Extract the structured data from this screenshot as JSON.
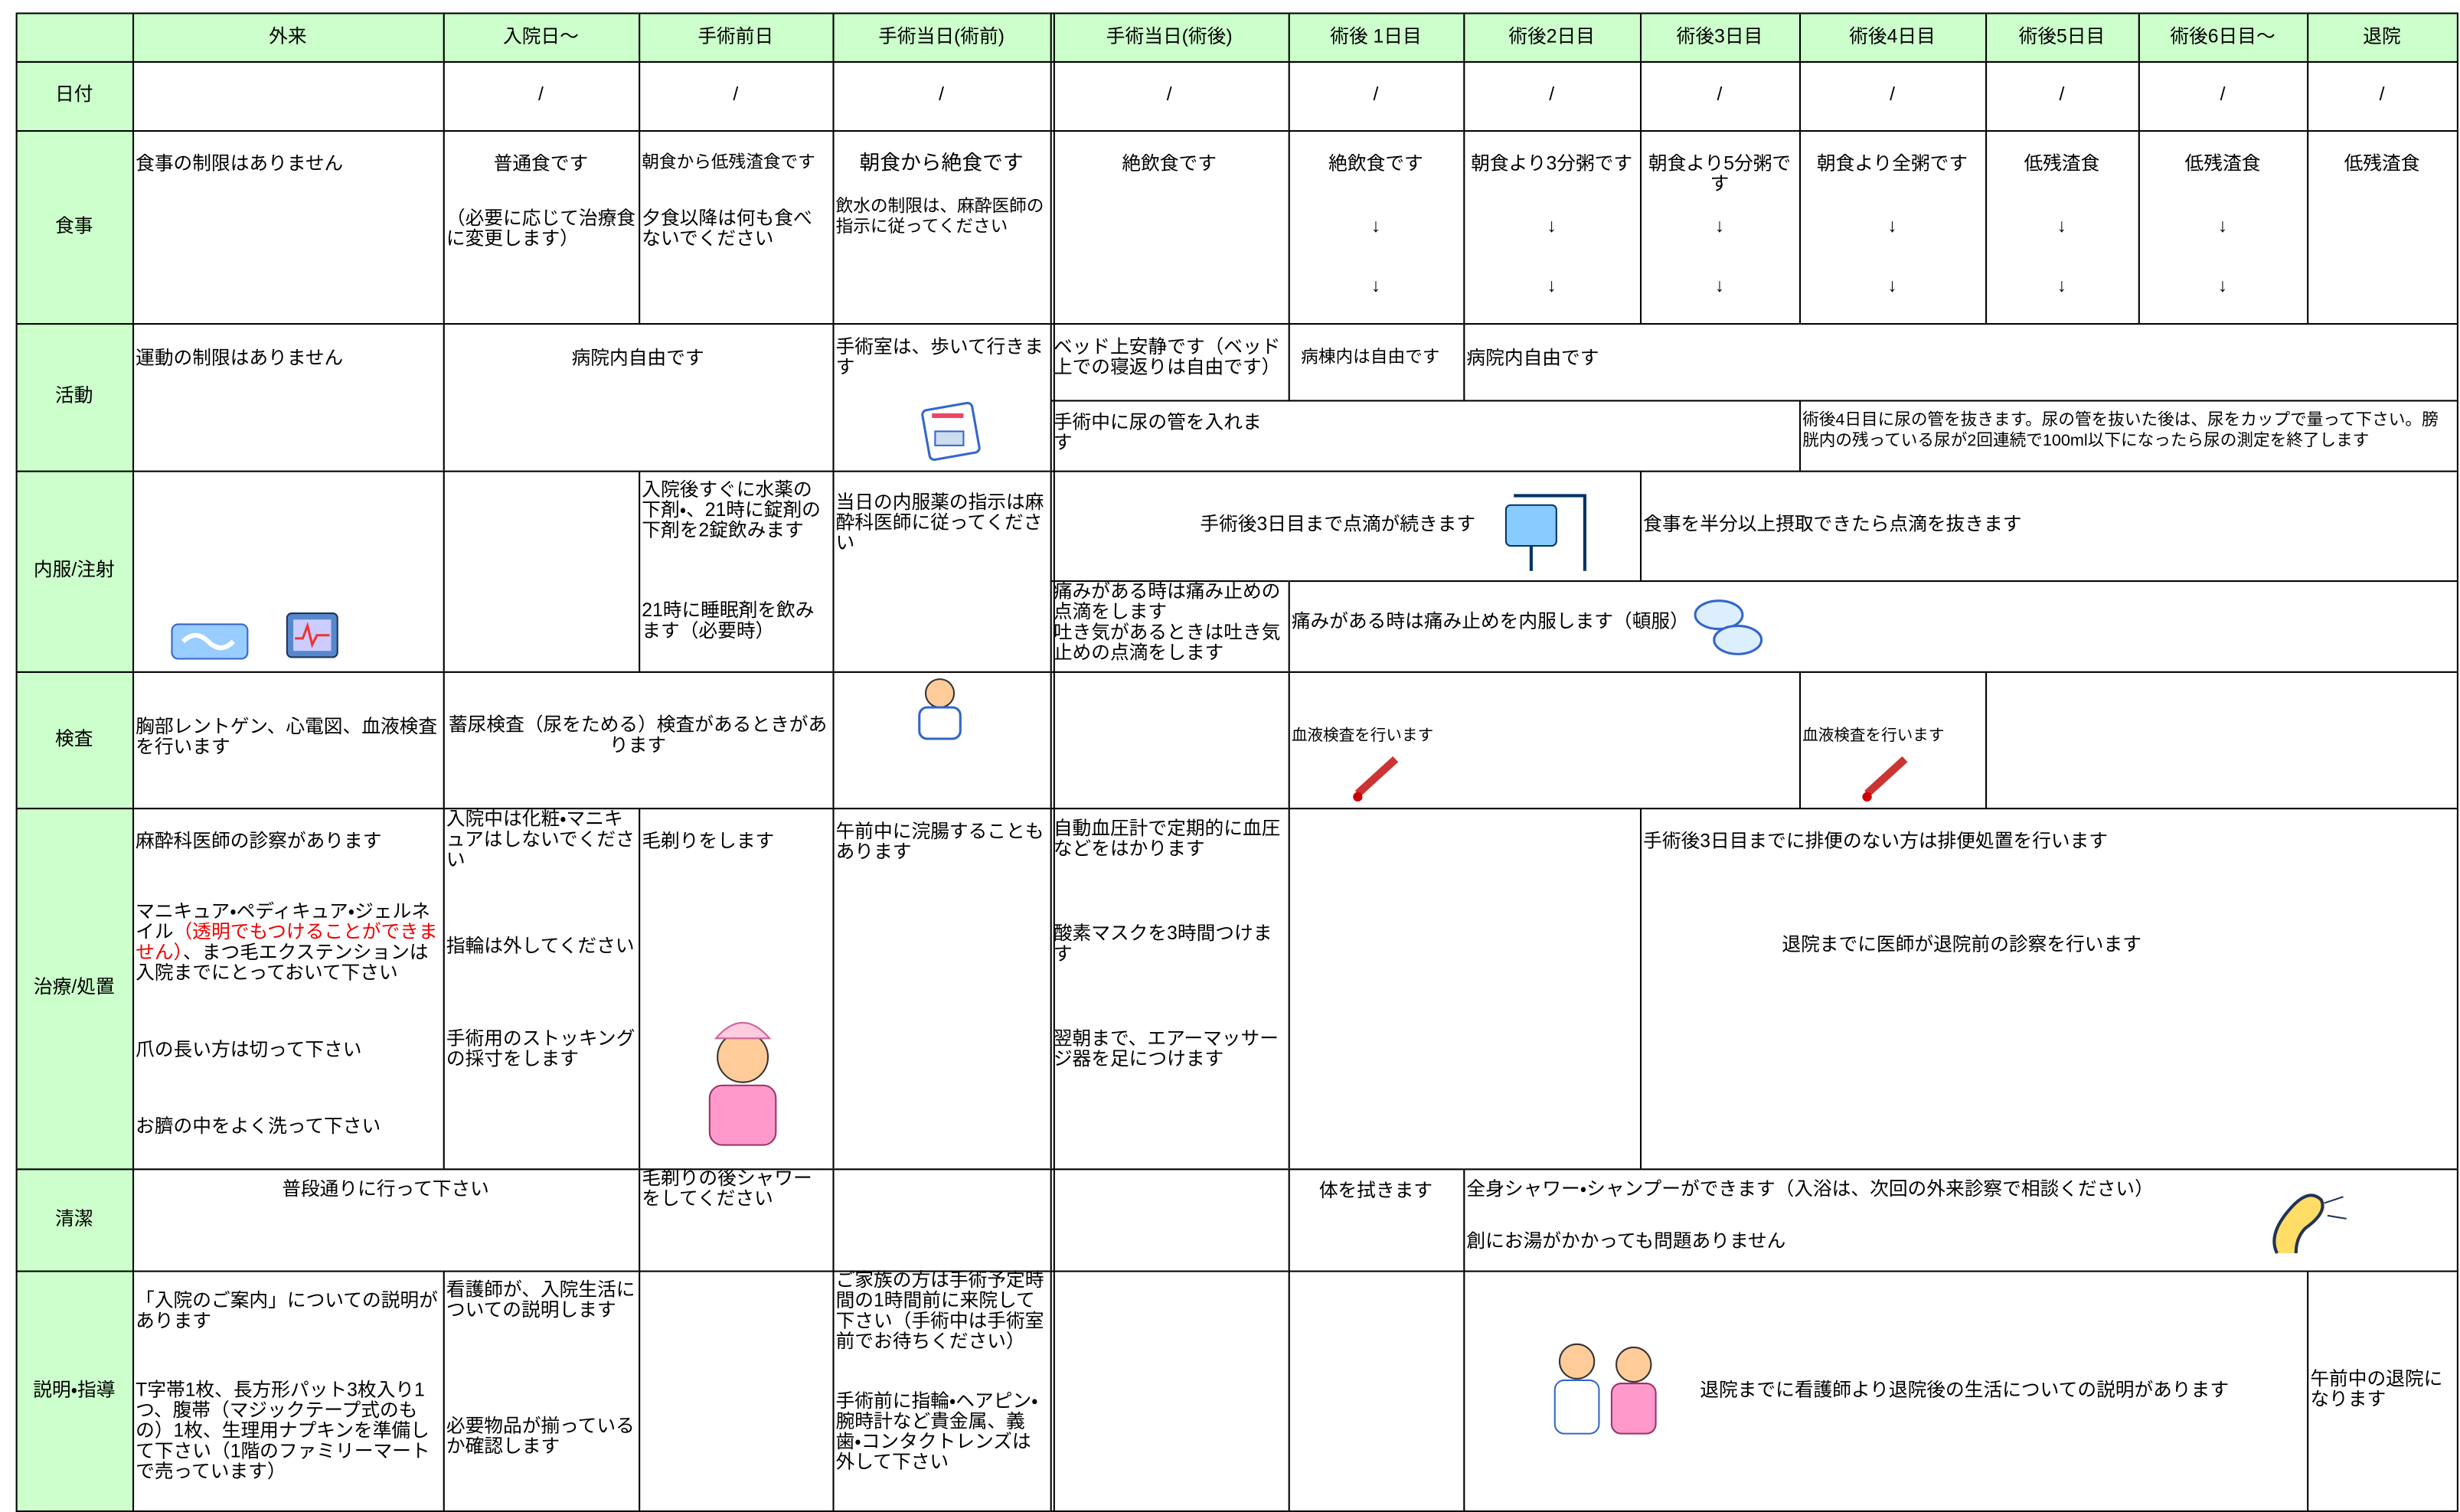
{
  "header": {
    "columns": [
      "外来",
      "入院日〜",
      "手術前日",
      "手術当日(術前)",
      "手術当日(術後)",
      "術後 1日目",
      "術後2日目",
      "術後3日目",
      "術後4日目",
      "術後5日目",
      "術後6日目〜",
      "退院"
    ]
  },
  "row_labels": [
    "日付",
    "食事",
    "活動",
    "内服/注射",
    "検査",
    "治療/処置",
    "清潔",
    "説明・指導"
  ],
  "date": [
    "/",
    "/",
    "/",
    "/",
    "/",
    "/",
    "/",
    "/",
    "/",
    "/",
    "/"
  ],
  "meal": {
    "outpatient": "食事の制限はありません",
    "admission": [
      "普通食です",
      "（必要に応じて治療食に変更します）"
    ],
    "day_before": [
      "朝食から低残渣食です",
      "夕食以降は何も食べないでください"
    ],
    "op_before": [
      "朝食から絶食です",
      "飲水の制限は、麻酔医師の指示に従ってください"
    ],
    "op_after": "絶飲食です",
    "post1": [
      "絶飲食です",
      "↓",
      "↓"
    ],
    "post2": [
      "朝食より3分粥です",
      "↓",
      "↓"
    ],
    "post3": [
      "朝食より5分粥です",
      "↓",
      "↓"
    ],
    "post4": [
      "朝食より全粥です",
      "↓",
      "↓"
    ],
    "post5": [
      "低残渣食",
      "↓",
      "↓"
    ],
    "post6": [
      "低残渣食",
      "↓",
      "↓"
    ],
    "discharge": "低残渣食"
  },
  "activity": {
    "outpatient": "運動の制限はありません",
    "admission_day_before": "病院内自由です",
    "op_before": "手術室は、歩いて行きます",
    "op_after": "ベッド上安静です（ベッド上での寝返りは自由です）",
    "post1": "病棟内は自由です",
    "post2_on": "病院内自由です",
    "catheter_in": "手術中に尿の管を入れます",
    "catheter_out": "術後4日目に尿の管を抜きます。尿の管を抜いた後は、尿をカップで量って下さい。膀胱内の残っている尿が2回連続で100ml以下になったら尿の測定を終了します"
  },
  "medication": {
    "day_before": [
      "入院後すぐに水薬の下剤・、21時に錠剤の下剤を2錠飲みます",
      "21時に睡眠剤を飲みます（必要時）"
    ],
    "op_before": "当日の内服薬の指示は麻酔科医師に従ってください",
    "drip_until": "手術後3日目まで点滴が続きます",
    "drip_remove": "食事を半分以上摂取できたら点滴を抜きます",
    "op_after_pain": [
      "痛みがある時は痛み止めの点滴をします",
      "吐き気があるときは吐き気止めの点滴をします"
    ],
    "oral_pain": "痛みがある時は痛み止めを内服します（頓服）"
  },
  "exam": {
    "outpatient": "胸部レントゲン、心電図、血液検査を行います",
    "admission_day_before": "蓄尿検査（尿をためる）検査があるときがあります",
    "post1": "血液検査を行います",
    "post4": "血液検査を行います"
  },
  "treatment": {
    "outpatient": [
      "麻酔科医師の診察があります",
      "マニキュア・ペディキュア・ジェルネイル",
      "（透明でもつけることができません）",
      "、まつ毛エクステンションは入院までにとっておいて下さい",
      "爪の長い方は切って下さい",
      "お臍の中をよく洗って下さい"
    ],
    "admission": [
      "入院中は化粧・マニキュアはしないでください",
      "指輪は外してください",
      "手術用のストッキングの採寸をします"
    ],
    "day_before": "毛剃りをします",
    "op_before": "午前中に浣腸することもあります",
    "op_after": [
      "自動血圧計で定期的に血圧などをはかります",
      "酸素マスクを3時間つけます",
      "翌朝まで、エアーマッサージ器を足につけます"
    ],
    "post3_on": [
      "手術後3日目までに排便のない方は排便処置を行います",
      "退院までに医師が退院前の診察を行います"
    ]
  },
  "hygiene": {
    "outpatient_admission": "普段通りに行って下さい",
    "day_before": "毛剃りの後シャワーをしてください",
    "post1": "体を拭きます",
    "post2_on": [
      "全身シャワー・シャンプーができます（入浴は、次回の外来診察で相談ください）",
      "創にお湯がかかっても問題ありません"
    ]
  },
  "guidance": {
    "outpatient": [
      "「入院のご案内」についての説明があります",
      "T字帯1枚、長方形パット3枚入り1つ、腹帯（マジックテープ式のもの）1枚、生理用ナプキンを準備して下さい（1階のファミリーマートで売っています）"
    ],
    "admission": [
      "看護師が、入院生活についての説明します",
      "必要物品が揃っているか確認します"
    ],
    "op_before": [
      "ご家族の方は手術予定時間の1時間前に来院して下さい（手術中は手術室前でお待ちください）",
      "手術前に指輪・ヘアピン・腕時計など貴金属、義歯・コンタクトレンズは外して下さい"
    ],
    "post2_on": "退院までに看護師より退院後の生活についての説明があります",
    "discharge": "午前中の退院になります"
  }
}
